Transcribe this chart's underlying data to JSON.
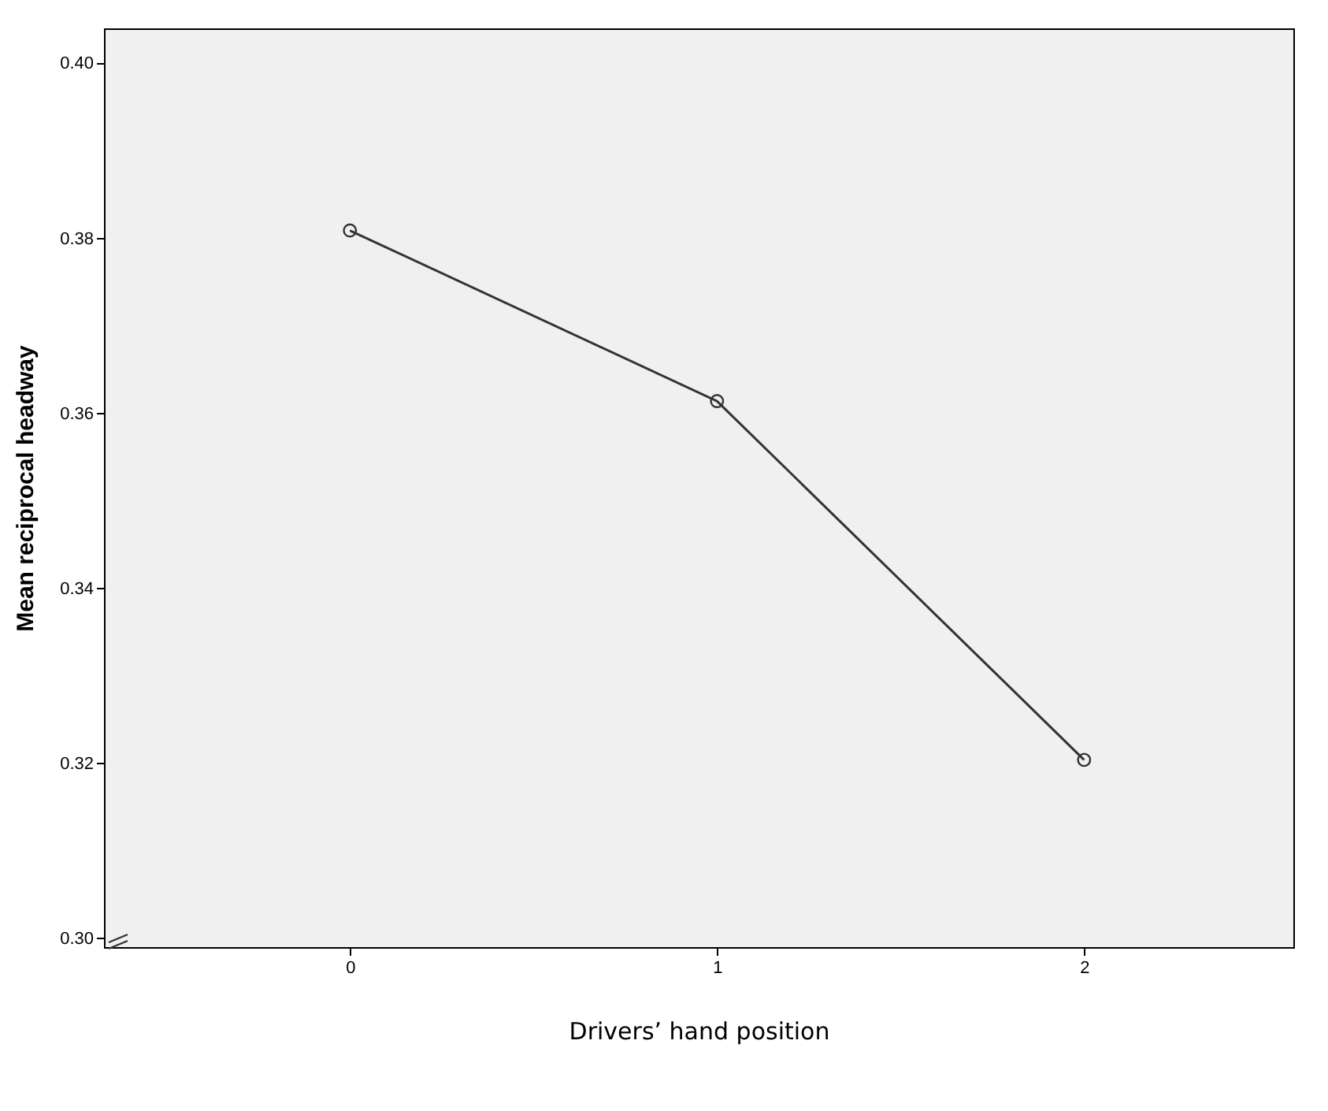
{
  "chart_data": {
    "type": "line",
    "xlabel": "Drivers’ hand position",
    "ylabel": "Mean reciprocal headway",
    "x": [
      0,
      1,
      2
    ],
    "xlim": [
      -0.67,
      2.57
    ],
    "xticks": [
      0,
      1,
      2
    ],
    "ylim": [
      0.299,
      0.404
    ],
    "yticks": [
      {
        "value": 0.3,
        "label": "0.30"
      },
      {
        "value": 0.32,
        "label": "0.32"
      },
      {
        "value": 0.34,
        "label": "0.34"
      },
      {
        "value": 0.36,
        "label": "0.36"
      },
      {
        "value": 0.38,
        "label": "0.38"
      },
      {
        "value": 0.4,
        "label": "0.40"
      }
    ],
    "series": [
      {
        "color": "#333333",
        "values": [
          0.3809,
          0.3614,
          0.3204
        ]
      }
    ],
    "marker": "circle",
    "grid": false
  }
}
